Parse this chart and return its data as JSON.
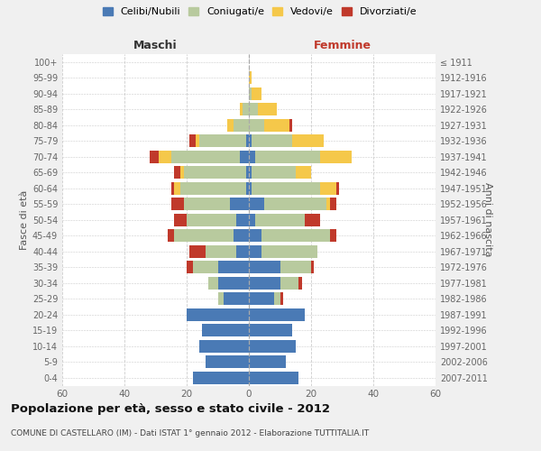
{
  "age_groups": [
    "0-4",
    "5-9",
    "10-14",
    "15-19",
    "20-24",
    "25-29",
    "30-34",
    "35-39",
    "40-44",
    "45-49",
    "50-54",
    "55-59",
    "60-64",
    "65-69",
    "70-74",
    "75-79",
    "80-84",
    "85-89",
    "90-94",
    "95-99",
    "100+"
  ],
  "birth_years": [
    "2007-2011",
    "2002-2006",
    "1997-2001",
    "1992-1996",
    "1987-1991",
    "1982-1986",
    "1977-1981",
    "1972-1976",
    "1967-1971",
    "1962-1966",
    "1957-1961",
    "1952-1956",
    "1947-1951",
    "1942-1946",
    "1937-1941",
    "1932-1936",
    "1927-1931",
    "1922-1926",
    "1917-1921",
    "1912-1916",
    "≤ 1911"
  ],
  "males_celibi": [
    18,
    14,
    16,
    15,
    20,
    8,
    10,
    10,
    4,
    5,
    4,
    6,
    1,
    1,
    3,
    1,
    0,
    0,
    0,
    0,
    0
  ],
  "males_coniugati": [
    0,
    0,
    0,
    0,
    0,
    2,
    3,
    8,
    10,
    19,
    16,
    15,
    21,
    20,
    22,
    15,
    5,
    2,
    0,
    0,
    0
  ],
  "males_vedovi": [
    0,
    0,
    0,
    0,
    0,
    0,
    0,
    0,
    0,
    0,
    0,
    0,
    2,
    1,
    4,
    1,
    2,
    1,
    0,
    0,
    0
  ],
  "males_divorziati": [
    0,
    0,
    0,
    0,
    0,
    0,
    0,
    2,
    5,
    2,
    4,
    4,
    1,
    2,
    3,
    2,
    0,
    0,
    0,
    0,
    0
  ],
  "females_nubili": [
    16,
    12,
    15,
    14,
    18,
    8,
    10,
    10,
    4,
    4,
    2,
    5,
    1,
    1,
    2,
    1,
    0,
    0,
    0,
    0,
    0
  ],
  "females_coniugate": [
    0,
    0,
    0,
    0,
    0,
    2,
    6,
    10,
    18,
    22,
    16,
    20,
    22,
    14,
    21,
    13,
    5,
    3,
    1,
    0,
    0
  ],
  "females_vedove": [
    0,
    0,
    0,
    0,
    0,
    0,
    0,
    0,
    0,
    0,
    0,
    1,
    5,
    5,
    10,
    10,
    8,
    6,
    3,
    1,
    0
  ],
  "females_divorziate": [
    0,
    0,
    0,
    0,
    0,
    1,
    1,
    1,
    0,
    2,
    5,
    2,
    1,
    0,
    0,
    0,
    1,
    0,
    0,
    0,
    0
  ],
  "color_celibi": "#4a7ab5",
  "color_coniugati": "#b8ca9e",
  "color_vedovi": "#f5c84a",
  "color_divorziati": "#c0392b",
  "title": "Popolazione per età, sesso e stato civile - 2012",
  "subtitle": "COMUNE DI CASTELLARO (IM) - Dati ISTAT 1° gennaio 2012 - Elaborazione TUTTITALIA.IT",
  "label_maschi": "Maschi",
  "label_femmine": "Femmine",
  "ylabel_left": "Fasce di età",
  "ylabel_right": "Anni di nascita",
  "legend_labels": [
    "Celibi/Nubili",
    "Coniugati/e",
    "Vedovi/e",
    "Divorziati/e"
  ],
  "xlim": 60,
  "bg_color": "#f0f0f0",
  "plot_bg": "#ffffff",
  "grid_color": "#cccccc"
}
